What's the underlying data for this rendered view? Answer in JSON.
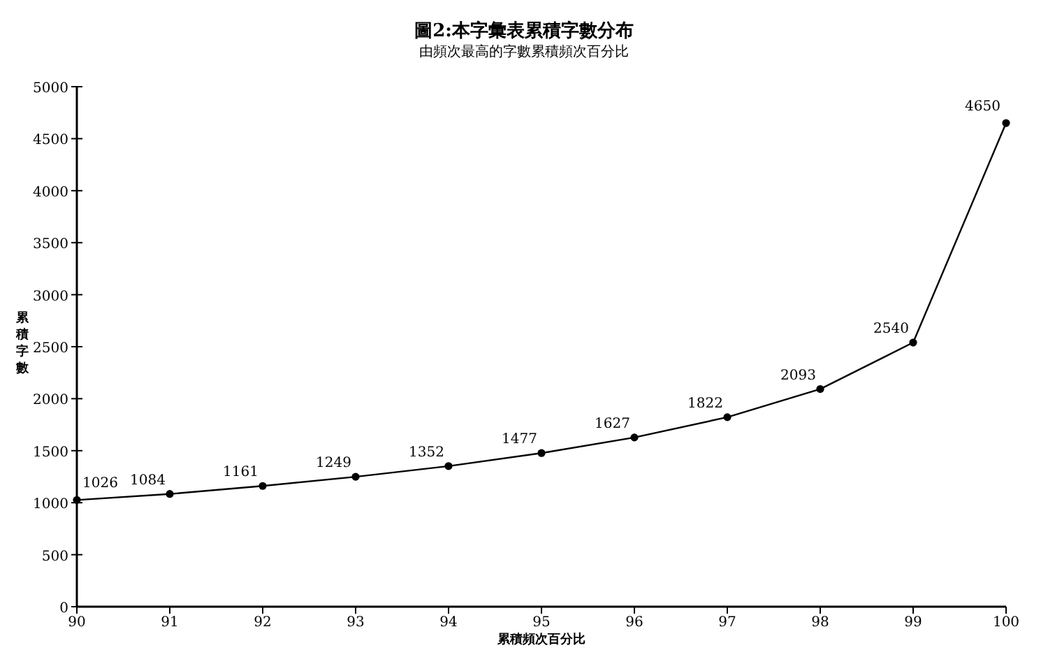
{
  "chart_data": {
    "type": "line",
    "title": "圖2:本字彙表累積字數分布",
    "subtitle": "由頻次最高的字數累積頻次百分比",
    "xlabel": "累積頻次百分比",
    "ylabel": "累積字數",
    "x": [
      90,
      91,
      92,
      93,
      94,
      95,
      96,
      97,
      98,
      99,
      100
    ],
    "series": [
      {
        "color": "#000000",
        "values": [
          1026,
          1084,
          1161,
          1249,
          1352,
          1477,
          1627,
          1822,
          2093,
          2540,
          4650
        ]
      }
    ],
    "xlim": [
      90,
      100
    ],
    "xticks": [
      90,
      91,
      92,
      93,
      94,
      95,
      96,
      97,
      98,
      99,
      100
    ],
    "ylim": [
      0,
      5000
    ],
    "yticks": [
      0,
      500,
      1000,
      1500,
      2000,
      2500,
      3000,
      3500,
      4000,
      4500,
      5000
    ],
    "data_labels": true,
    "marker": "circle",
    "line_style": "solid",
    "grid": false
  }
}
